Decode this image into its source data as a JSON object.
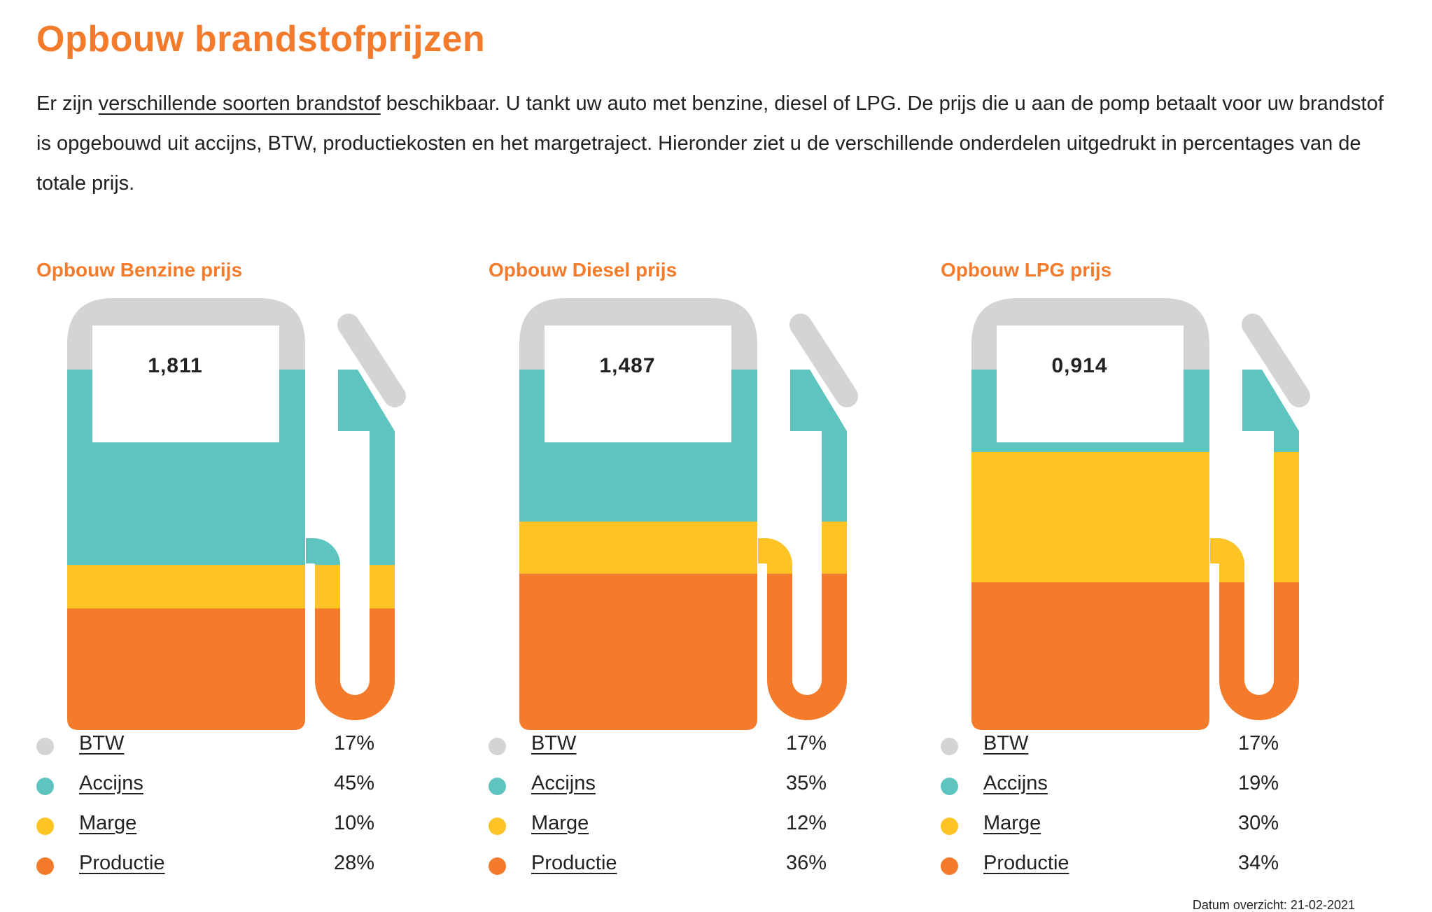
{
  "page": {
    "title": "Opbouw brandstofprijzen",
    "intro": {
      "before_link": "Er zijn ",
      "link_text": "verschillende soorten brandstof",
      "after_link": " beschikbaar. U tankt uw auto met benzine, diesel of LPG. De prijs die u aan de pomp betaalt voor uw brandstof is opgebouwd uit accijns, BTW, productiekosten en het margetraject. Hieronder ziet u de verschillende onderdelen uitgedrukt in percentages van de totale prijs."
    },
    "date_note": "Datum overzicht: 21-02-2021"
  },
  "colors": {
    "BTW": "#d4d4d6",
    "Accijns": "#5ec4bf",
    "Marge": "#fec325",
    "Productie": "#f37b2b",
    "title_orange": "#f37b2b"
  },
  "chart_data": [
    {
      "type": "bar",
      "subtype": "stacked-100-percent",
      "title": "Opbouw Benzine prijs",
      "price": "1,811",
      "categories": [
        "BTW",
        "Accijns",
        "Marge",
        "Productie"
      ],
      "values": [
        17,
        45,
        10,
        28
      ],
      "labels": [
        "17%",
        "45%",
        "10%",
        "28%"
      ]
    },
    {
      "type": "bar",
      "subtype": "stacked-100-percent",
      "title": "Opbouw Diesel prijs",
      "price": "1,487",
      "categories": [
        "BTW",
        "Accijns",
        "Marge",
        "Productie"
      ],
      "values": [
        17,
        35,
        12,
        36
      ],
      "labels": [
        "17%",
        "35%",
        "12%",
        "36%"
      ]
    },
    {
      "type": "bar",
      "subtype": "stacked-100-percent",
      "title": "Opbouw LPG prijs",
      "price": "0,914",
      "categories": [
        "BTW",
        "Accijns",
        "Marge",
        "Productie"
      ],
      "values": [
        17,
        19,
        30,
        34
      ],
      "labels": [
        "17%",
        "19%",
        "30%",
        "34%"
      ]
    }
  ]
}
